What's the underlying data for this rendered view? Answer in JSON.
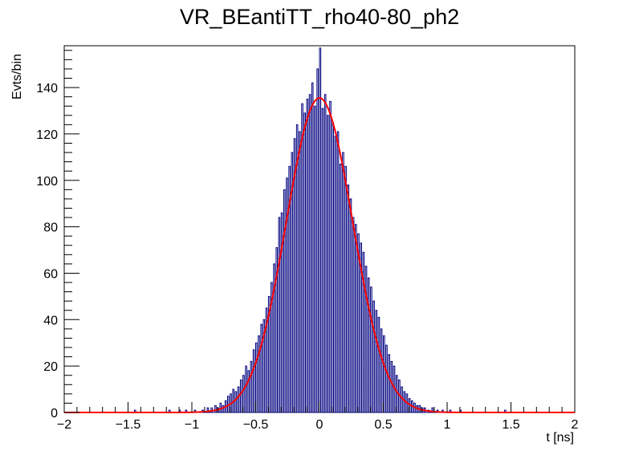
{
  "chart_data": {
    "type": "histogram",
    "title": "VR_BEantiTT_rho40-80_ph2",
    "xlabel": "t [ns]",
    "ylabel": "Evts/bin",
    "xlim": [
      -2,
      2
    ],
    "ylim": [
      0,
      158
    ],
    "x_major_ticks": [
      -2,
      -1.5,
      -1,
      -0.5,
      0,
      0.5,
      1,
      1.5,
      2
    ],
    "x_tick_labels": [
      "−2",
      "−1.5",
      "−1",
      "−0.5",
      "0",
      "0.5",
      "1",
      "1.5",
      "2"
    ],
    "y_major_ticks": [
      0,
      20,
      40,
      60,
      80,
      100,
      120,
      140
    ],
    "y_tick_labels": [
      "0",
      "20",
      "40",
      "60",
      "80",
      "100",
      "120",
      "140"
    ],
    "grid": false,
    "legend": "none",
    "series": [
      {
        "type": "histogram",
        "bin_edges_range": [
          -2,
          2
        ],
        "bin_width": 0.01,
        "nonzero_bins": [
          [
            -1.45,
            1
          ],
          [
            -1.18,
            1
          ],
          [
            -1.1,
            1
          ],
          [
            -1.05,
            1
          ],
          [
            -0.98,
            1
          ],
          [
            -0.92,
            1
          ],
          [
            -0.88,
            2
          ],
          [
            -0.85,
            2
          ],
          [
            -0.82,
            3
          ],
          [
            -0.8,
            2
          ],
          [
            -0.78,
            4
          ],
          [
            -0.76,
            3
          ],
          [
            -0.74,
            5
          ],
          [
            -0.72,
            7
          ],
          [
            -0.7,
            8
          ],
          [
            -0.68,
            10
          ],
          [
            -0.66,
            9
          ],
          [
            -0.64,
            11
          ],
          [
            -0.62,
            14
          ],
          [
            -0.6,
            16
          ],
          [
            -0.58,
            20
          ],
          [
            -0.56,
            18
          ],
          [
            -0.54,
            22
          ],
          [
            -0.52,
            27
          ],
          [
            -0.5,
            30
          ],
          [
            -0.48,
            33
          ],
          [
            -0.46,
            38
          ],
          [
            -0.44,
            40
          ],
          [
            -0.42,
            45
          ],
          [
            -0.4,
            50
          ],
          [
            -0.38,
            56
          ],
          [
            -0.36,
            64
          ],
          [
            -0.34,
            71
          ],
          [
            -0.32,
            84
          ],
          [
            -0.3,
            86
          ],
          [
            -0.28,
            96
          ],
          [
            -0.26,
            101
          ],
          [
            -0.24,
            106
          ],
          [
            -0.22,
            112
          ],
          [
            -0.2,
            118
          ],
          [
            -0.18,
            124
          ],
          [
            -0.16,
            121
          ],
          [
            -0.14,
            133
          ],
          [
            -0.12,
            129
          ],
          [
            -0.1,
            135
          ],
          [
            -0.08,
            137
          ],
          [
            -0.06,
            142
          ],
          [
            -0.04,
            132
          ],
          [
            -0.02,
            148
          ],
          [
            0.0,
            157
          ],
          [
            0.02,
            131
          ],
          [
            0.04,
            137
          ],
          [
            0.06,
            128
          ],
          [
            0.08,
            134
          ],
          [
            0.1,
            125
          ],
          [
            0.12,
            119
          ],
          [
            0.14,
            121
          ],
          [
            0.16,
            107
          ],
          [
            0.18,
            112
          ],
          [
            0.2,
            106
          ],
          [
            0.22,
            98
          ],
          [
            0.24,
            92
          ],
          [
            0.26,
            84
          ],
          [
            0.28,
            81
          ],
          [
            0.3,
            77
          ],
          [
            0.32,
            73
          ],
          [
            0.34,
            69
          ],
          [
            0.36,
            63
          ],
          [
            0.38,
            58
          ],
          [
            0.4,
            54
          ],
          [
            0.42,
            48
          ],
          [
            0.44,
            44
          ],
          [
            0.46,
            41
          ],
          [
            0.48,
            36
          ],
          [
            0.5,
            33
          ],
          [
            0.52,
            29
          ],
          [
            0.54,
            25
          ],
          [
            0.56,
            22
          ],
          [
            0.58,
            20
          ],
          [
            0.6,
            16
          ],
          [
            0.62,
            14
          ],
          [
            0.64,
            11
          ],
          [
            0.66,
            9
          ],
          [
            0.68,
            8
          ],
          [
            0.7,
            6
          ],
          [
            0.72,
            5
          ],
          [
            0.74,
            4
          ],
          [
            0.76,
            3
          ],
          [
            0.78,
            3
          ],
          [
            0.8,
            2
          ],
          [
            0.82,
            2
          ],
          [
            0.85,
            1
          ],
          [
            0.88,
            2
          ],
          [
            0.92,
            1
          ],
          [
            0.96,
            1
          ],
          [
            1.02,
            1
          ],
          [
            1.1,
            1
          ],
          [
            1.45,
            1
          ]
        ],
        "color": "#000080"
      },
      {
        "type": "line",
        "function": "gaussian",
        "amplitude": 135.5,
        "mean": 0.0,
        "sigma": 0.26,
        "color": "#ff0000"
      }
    ]
  }
}
